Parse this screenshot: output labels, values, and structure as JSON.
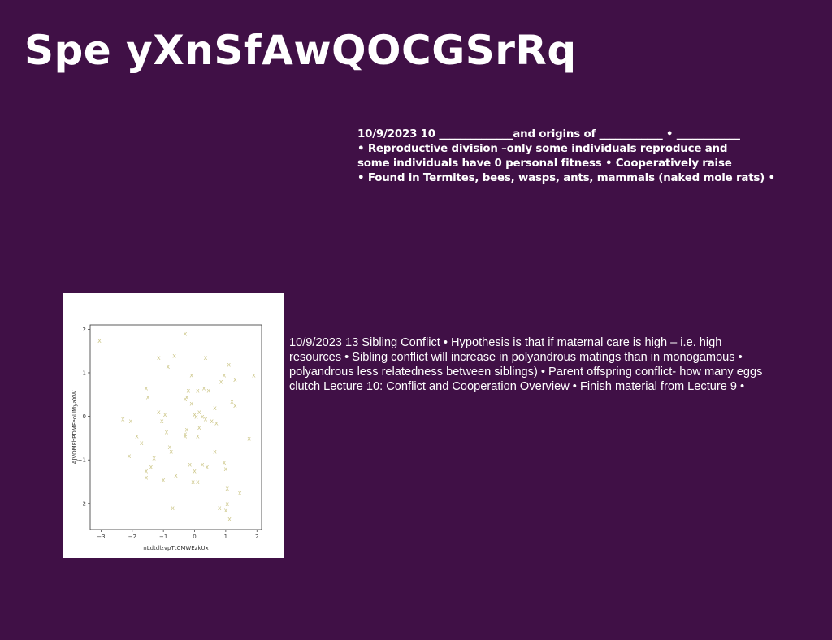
{
  "slide": {
    "title": "Spe yXnSfAwQOCGSrRq",
    "bold_lines": [
      "10/9/2023 10 ______________and origins of ____________ • ____________",
      "• Reproductive division –only some individuals reproduce and",
      "some individuals have 0 personal fitness • Cooperatively raise",
      "• Found in Termites, bees, wasps, ants, mammals (naked mole rats) •"
    ],
    "paragraph_lines": [
      "10/9/2023 13 Sibling Conflict • Hypothesis is that if maternal care is high – i.e. high",
      "resources • Sibling conflict will increase in polyandrous matings than in monogamous •",
      "polyandrous less relatedness between siblings) • Parent offspring conflict- how many eggs",
      "clutch Lecture 10: Conflict and Cooperation Overview • Finish material from Lecture 9 •"
    ]
  },
  "chart_data": {
    "type": "scatter",
    "xlabel": "nLdtdlzvpTtCMWEzkUx",
    "ylabel": "AJVOMFhPDMFeoUMyaXW",
    "xlim": [
      -3.35,
      2.15
    ],
    "ylim": [
      -2.6,
      2.1
    ],
    "xticks": [
      -3,
      -2,
      -1,
      0,
      1,
      2
    ],
    "yticks": [
      -2,
      -1,
      0,
      1,
      2
    ],
    "marker": "x",
    "color": "#cfc98e",
    "x": [
      -3.05,
      -0.3,
      -0.65,
      -1.15,
      0.35,
      -0.85,
      -0.1,
      1.1,
      1.3,
      0.95,
      1.9,
      0.85,
      -1.55,
      -1.5,
      -0.3,
      -0.25,
      0.1,
      -0.2,
      0.3,
      0.45,
      0.65,
      -0.1,
      1.2,
      1.3,
      -2.3,
      -2.05,
      -1.15,
      -0.95,
      -1.05,
      0.0,
      0.05,
      0.15,
      0.25,
      0.35,
      0.55,
      0.7,
      -1.85,
      -1.7,
      -0.9,
      -0.3,
      0.15,
      0.1,
      -0.25,
      -0.3,
      -0.8,
      -0.75,
      -1.3,
      -1.4,
      -1.55,
      -1.55,
      -2.1,
      -0.15,
      0.25,
      0.4,
      0.0,
      -0.05,
      0.65,
      0.95,
      1.0,
      1.05,
      -1.0,
      -0.6,
      0.1,
      1.05,
      1.45,
      0.8,
      1.0,
      1.12,
      1.75,
      -0.7
    ],
    "y": [
      1.75,
      1.9,
      1.4,
      1.35,
      1.35,
      1.15,
      0.95,
      1.2,
      0.85,
      0.95,
      0.95,
      0.8,
      0.65,
      0.45,
      0.4,
      0.45,
      0.6,
      0.6,
      0.65,
      0.6,
      0.2,
      0.3,
      0.35,
      0.25,
      -0.05,
      -0.1,
      0.1,
      0.05,
      -0.1,
      0.05,
      0.0,
      0.1,
      0.0,
      -0.05,
      -0.1,
      -0.15,
      -0.45,
      -0.6,
      -0.35,
      -0.45,
      -0.25,
      -0.45,
      -0.3,
      -0.4,
      -0.7,
      -0.8,
      -0.95,
      -1.15,
      -1.25,
      -1.4,
      -0.9,
      -1.1,
      -1.1,
      -1.15,
      -1.25,
      -1.5,
      -0.8,
      -1.05,
      -1.2,
      -1.65,
      -1.45,
      -1.35,
      -1.5,
      -2.0,
      -1.75,
      -2.1,
      -2.15,
      -2.35,
      -0.5,
      -2.1
    ]
  }
}
